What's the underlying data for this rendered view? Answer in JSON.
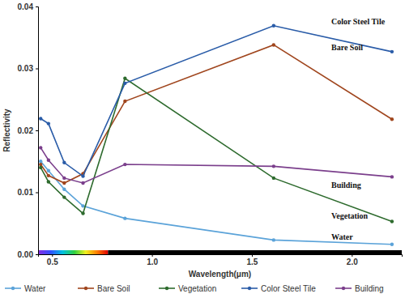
{
  "chart_data": {
    "type": "line",
    "x_label": "Wavelength(μm)",
    "y_label": "Reflectivity",
    "x": [
      0.443,
      0.482,
      0.561,
      0.655,
      0.865,
      1.609,
      2.201
    ],
    "xlim": [
      0.43,
      2.25
    ],
    "xticks": [
      0.5,
      {
        "value": 1,
        "label": "1.0"
      },
      1.5,
      {
        "value": 2,
        "label": "2.0"
      }
    ],
    "ylim": [
      0,
      0.04
    ],
    "yticks": [
      {
        "value": 0,
        "label": "0.00"
      },
      0.01,
      0.02,
      0.03,
      0.04
    ],
    "grid": false,
    "legend": "bottom",
    "marker": "circle",
    "series": [
      {
        "name": "Water",
        "color": "#5ba3d9",
        "values": [
          0.015,
          0.0135,
          0.0105,
          0.0078,
          0.0058,
          0.0023,
          0.0016
        ]
      },
      {
        "name": "Bare Soil",
        "color": "#a0461e",
        "values": [
          0.0145,
          0.0127,
          0.0115,
          0.013,
          0.0247,
          0.0338,
          0.0218
        ]
      },
      {
        "name": "Vegetation",
        "color": "#2e6b2e",
        "values": [
          0.014,
          0.0117,
          0.0092,
          0.0066,
          0.0284,
          0.0123,
          0.0053
        ]
      },
      {
        "name": "Color Steel Tile",
        "color": "#2a5ca8",
        "values": [
          0.0219,
          0.0211,
          0.0148,
          0.0126,
          0.0276,
          0.0369,
          0.0327
        ]
      },
      {
        "name": "Building",
        "color": "#7b3f8c",
        "values": [
          0.0172,
          0.0152,
          0.0123,
          0.0115,
          0.0145,
          0.0142,
          0.0125
        ]
      }
    ],
    "annotations": [
      "Color Steel Tile",
      "Bare Soil",
      "Building",
      "Vegetation",
      "Water"
    ]
  }
}
